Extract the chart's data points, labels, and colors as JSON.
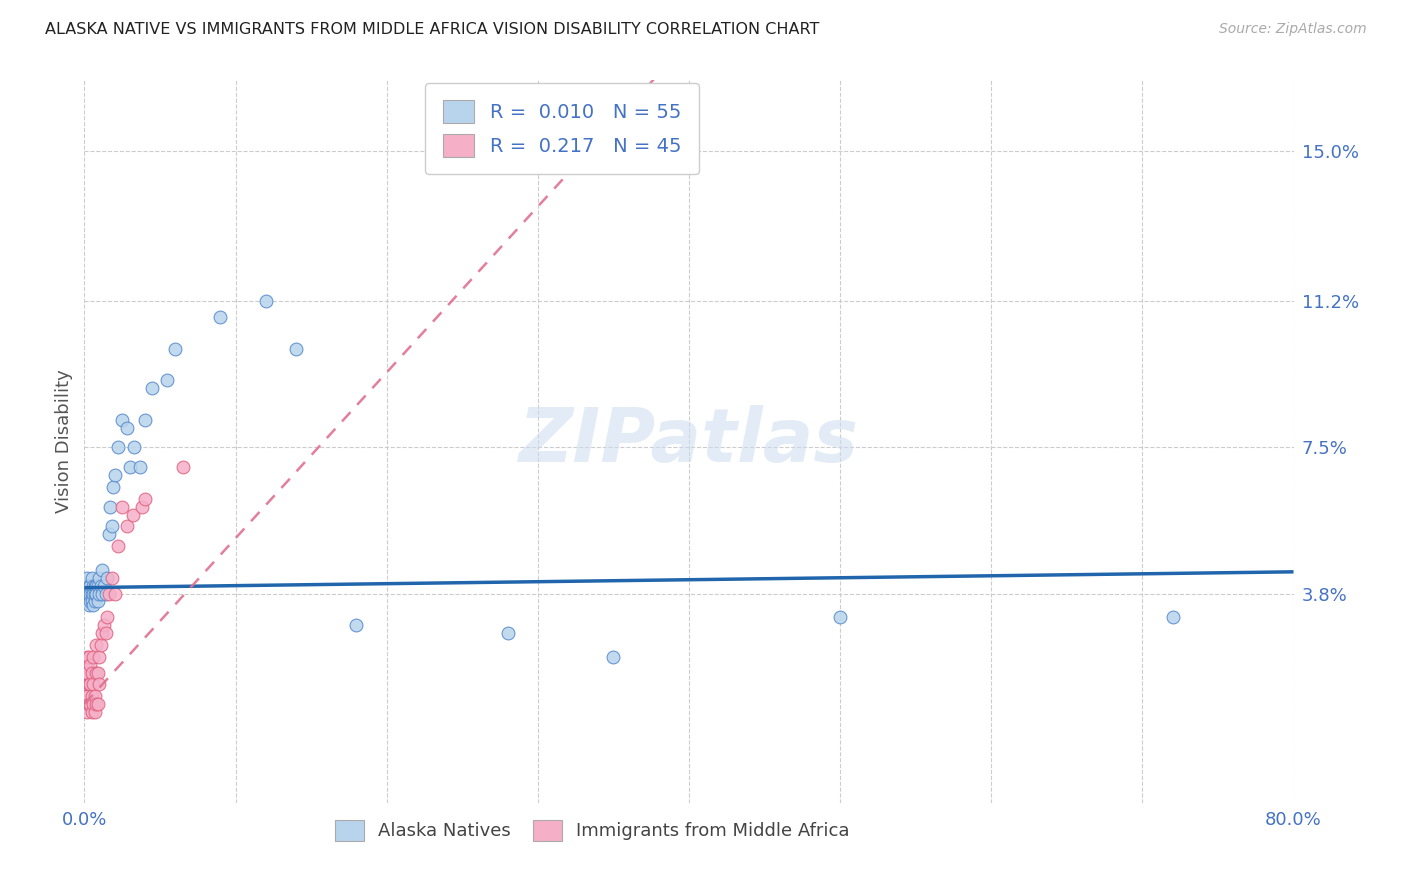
{
  "title": "ALASKA NATIVE VS IMMIGRANTS FROM MIDDLE AFRICA VISION DISABILITY CORRELATION CHART",
  "source": "Source: ZipAtlas.com",
  "ylabel": "Vision Disability",
  "xlim": [
    0.0,
    0.8
  ],
  "ylim": [
    -0.015,
    0.168
  ],
  "ytick_vals": [
    0.038,
    0.075,
    0.112,
    0.15
  ],
  "ytick_labels": [
    "3.8%",
    "7.5%",
    "11.2%",
    "15.0%"
  ],
  "xtick_vals": [
    0.0,
    0.1,
    0.2,
    0.3,
    0.4,
    0.5,
    0.6,
    0.7,
    0.8
  ],
  "xtick_labels": [
    "0.0%",
    "",
    "",
    "",
    "",
    "",
    "",
    "",
    "80.0%"
  ],
  "alaska_R": "0.010",
  "alaska_N": "55",
  "middle_africa_R": "0.217",
  "middle_africa_N": "45",
  "alaska_color": "#b8d4ec",
  "alaska_edge_color": "#5588cc",
  "middle_africa_color": "#f5b0c8",
  "middle_africa_edge_color": "#e06080",
  "alaska_line_color": "#2166ac",
  "middle_africa_line_color": "#e07090",
  "watermark_text": "ZIPatlas",
  "background_color": "#ffffff",
  "grid_color": "#cccccc",
  "axis_label_color": "#4472c4",
  "title_color": "#222222",
  "legend_text_color": "#4472c4",
  "alaska_reg_slope": 0.005,
  "alaska_reg_intercept": 0.0395,
  "middle_africa_reg_slope": 0.42,
  "middle_africa_reg_intercept": 0.01,
  "alaska_x": [
    0.001,
    0.001,
    0.002,
    0.002,
    0.002,
    0.003,
    0.003,
    0.003,
    0.004,
    0.004,
    0.004,
    0.005,
    0.005,
    0.005,
    0.006,
    0.006,
    0.006,
    0.007,
    0.007,
    0.007,
    0.008,
    0.008,
    0.009,
    0.009,
    0.01,
    0.01,
    0.011,
    0.012,
    0.012,
    0.013,
    0.014,
    0.015,
    0.016,
    0.017,
    0.018,
    0.019,
    0.02,
    0.022,
    0.025,
    0.028,
    0.03,
    0.033,
    0.037,
    0.04,
    0.045,
    0.055,
    0.06,
    0.09,
    0.12,
    0.14,
    0.18,
    0.28,
    0.35,
    0.5,
    0.72
  ],
  "alaska_y": [
    0.036,
    0.04,
    0.038,
    0.036,
    0.042,
    0.04,
    0.035,
    0.038,
    0.036,
    0.04,
    0.038,
    0.038,
    0.042,
    0.036,
    0.035,
    0.04,
    0.038,
    0.04,
    0.036,
    0.038,
    0.04,
    0.038,
    0.036,
    0.04,
    0.038,
    0.042,
    0.04,
    0.044,
    0.038,
    0.04,
    0.038,
    0.042,
    0.053,
    0.06,
    0.055,
    0.065,
    0.068,
    0.075,
    0.082,
    0.08,
    0.07,
    0.075,
    0.07,
    0.082,
    0.09,
    0.092,
    0.1,
    0.108,
    0.112,
    0.1,
    0.03,
    0.028,
    0.022,
    0.032,
    0.032
  ],
  "middle_africa_x": [
    0.001,
    0.001,
    0.001,
    0.001,
    0.001,
    0.002,
    0.002,
    0.002,
    0.002,
    0.003,
    0.003,
    0.003,
    0.004,
    0.004,
    0.004,
    0.005,
    0.005,
    0.005,
    0.006,
    0.006,
    0.006,
    0.007,
    0.007,
    0.008,
    0.008,
    0.008,
    0.009,
    0.009,
    0.01,
    0.01,
    0.011,
    0.012,
    0.013,
    0.014,
    0.015,
    0.016,
    0.018,
    0.02,
    0.022,
    0.025,
    0.028,
    0.032,
    0.038,
    0.04,
    0.065
  ],
  "middle_africa_y": [
    0.01,
    0.012,
    0.015,
    0.018,
    0.02,
    0.008,
    0.012,
    0.018,
    0.022,
    0.01,
    0.015,
    0.022,
    0.01,
    0.015,
    0.02,
    0.008,
    0.012,
    0.018,
    0.01,
    0.015,
    0.022,
    0.008,
    0.012,
    0.01,
    0.018,
    0.025,
    0.01,
    0.018,
    0.015,
    0.022,
    0.025,
    0.028,
    0.03,
    0.028,
    0.032,
    0.038,
    0.042,
    0.038,
    0.05,
    0.06,
    0.055,
    0.058,
    0.06,
    0.062,
    0.07
  ]
}
